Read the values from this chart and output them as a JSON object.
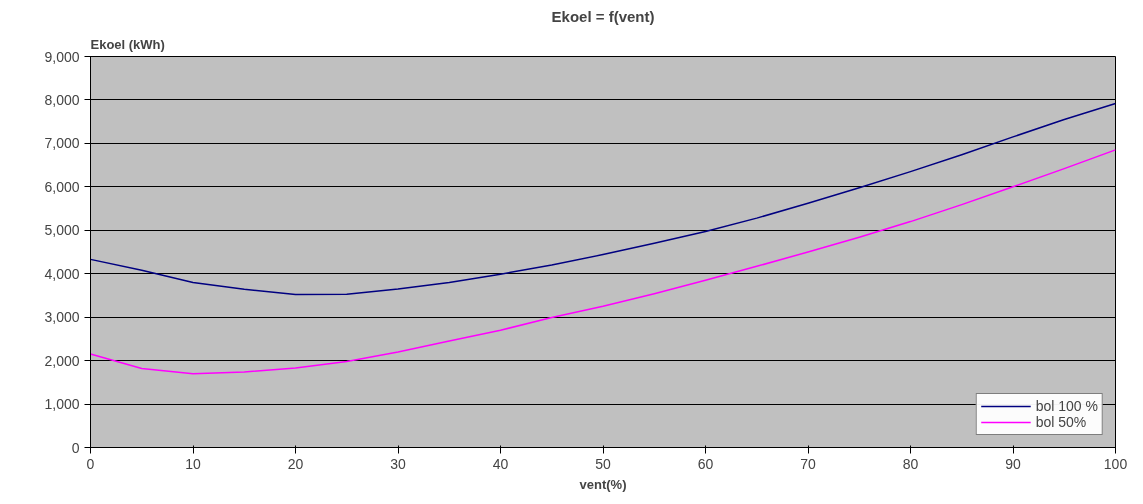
{
  "chart_data": {
    "type": "line",
    "title": "Ekoel = f(vent)",
    "xlabel": "vent(%)",
    "ylabel": "Ekoel (kWh)",
    "x": [
      0,
      5,
      10,
      15,
      20,
      25,
      30,
      35,
      40,
      45,
      50,
      55,
      60,
      65,
      70,
      75,
      80,
      85,
      90,
      95,
      100
    ],
    "series": [
      {
        "name": "bol 100 %",
        "color": "#000080",
        "values": [
          4330,
          4080,
          3800,
          3640,
          3520,
          3530,
          3650,
          3800,
          3990,
          4200,
          4440,
          4700,
          4970,
          5280,
          5620,
          5980,
          6350,
          6740,
          7150,
          7550,
          7920
        ]
      },
      {
        "name": "bol 50%",
        "color": "#ff00ff",
        "values": [
          2150,
          1820,
          1700,
          1740,
          1830,
          1980,
          2200,
          2450,
          2700,
          2990,
          3250,
          3540,
          3850,
          4170,
          4500,
          4840,
          5200,
          5590,
          6000,
          6420,
          6850
        ]
      }
    ],
    "xlim": [
      0,
      100
    ],
    "xticks": [
      0,
      10,
      20,
      30,
      40,
      50,
      60,
      70,
      80,
      90,
      100
    ],
    "ylim": [
      0,
      9000
    ],
    "yticks": [
      {
        "value": 0,
        "label": "0"
      },
      {
        "value": 1000,
        "label": "1,000"
      },
      {
        "value": 2000,
        "label": "2,000"
      },
      {
        "value": 3000,
        "label": "3,000"
      },
      {
        "value": 4000,
        "label": "4,000"
      },
      {
        "value": 5000,
        "label": "5,000"
      },
      {
        "value": 6000,
        "label": "6,000"
      },
      {
        "value": 7000,
        "label": "7,000"
      },
      {
        "value": 8000,
        "label": "8,000"
      },
      {
        "value": 9000,
        "label": "9,000"
      }
    ],
    "grid": "y",
    "legend": "bottom right",
    "marker": "none",
    "line_style": "solid"
  }
}
